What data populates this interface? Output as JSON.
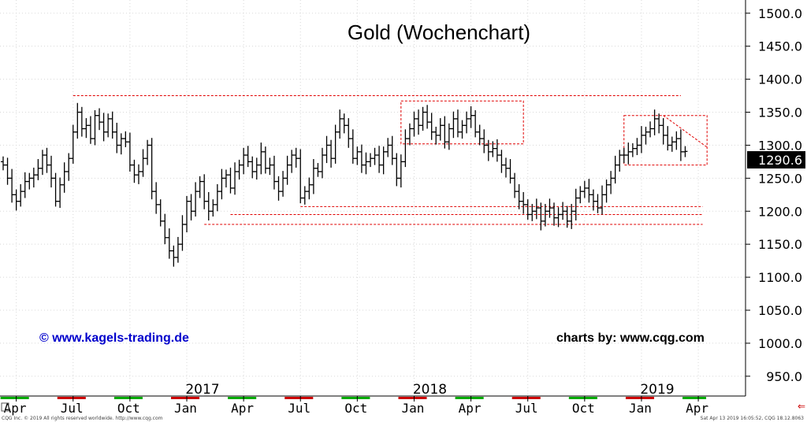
{
  "chart_data": {
    "type": "ohlc",
    "title": "Gold (Wochenchart)",
    "credits": {
      "left": "© www.kagels-trading.de",
      "right": "charts by: www.cqg.com"
    },
    "footer": {
      "left": "CQG Inc. © 2019 All rights reserved worldwide. http://www.cqg.com",
      "right": "Sat Apr 13 2019 16:05:52, CQG 18.12.8063"
    },
    "last_value": "1290.6",
    "colors": {
      "bars": "#000000",
      "lines": "#e00000",
      "last_box": "#000000",
      "credit_left": "#0000cc"
    },
    "yaxis": {
      "range": [
        920,
        1520
      ],
      "ticks": [
        950,
        1000,
        1050,
        1100,
        1150,
        1200,
        1250,
        1300,
        1350,
        1400,
        1450,
        1500
      ],
      "tick_labels": [
        "950.0",
        "1000.0",
        "1050.0",
        "1100.0",
        "1150.0",
        "1200.0",
        "1250.0",
        "1300.0",
        "1350.0",
        "1400.0",
        "1450.0",
        "1500.0"
      ]
    },
    "xaxis": {
      "months": [
        {
          "label": "Apr",
          "week": 3
        },
        {
          "label": "Jul",
          "week": 16
        },
        {
          "label": "Oct",
          "week": 29
        },
        {
          "label": "Jan",
          "week": 42
        },
        {
          "label": "Apr",
          "week": 55
        },
        {
          "label": "Jul",
          "week": 68
        },
        {
          "label": "Oct",
          "week": 81
        },
        {
          "label": "Jan",
          "week": 94
        },
        {
          "label": "Apr",
          "week": 107
        },
        {
          "label": "Jul",
          "week": 120
        },
        {
          "label": "Oct",
          "week": 133
        },
        {
          "label": "Jan",
          "week": 146
        },
        {
          "label": "Apr",
          "week": 159
        }
      ],
      "years": [
        {
          "label": "2017",
          "week": 42
        },
        {
          "label": "2018",
          "week": 94
        },
        {
          "label": "2019",
          "week": 146
        }
      ],
      "weeks_total": 168
    },
    "closes": [
      1270,
      1250,
      1225,
      1215,
      1230,
      1245,
      1250,
      1255,
      1265,
      1285,
      1270,
      1250,
      1215,
      1240,
      1260,
      1280,
      1320,
      1350,
      1325,
      1330,
      1310,
      1345,
      1335,
      1320,
      1340,
      1320,
      1300,
      1310,
      1305,
      1270,
      1255,
      1260,
      1280,
      1300,
      1230,
      1210,
      1185,
      1160,
      1140,
      1130,
      1150,
      1180,
      1215,
      1200,
      1230,
      1245,
      1215,
      1200,
      1210,
      1230,
      1250,
      1255,
      1235,
      1260,
      1270,
      1285,
      1275,
      1260,
      1270,
      1290,
      1265,
      1270,
      1245,
      1230,
      1250,
      1270,
      1285,
      1280,
      1220,
      1230,
      1240,
      1265,
      1260,
      1285,
      1300,
      1280,
      1320,
      1340,
      1330,
      1310,
      1280,
      1290,
      1270,
      1275,
      1280,
      1285,
      1270,
      1290,
      1300,
      1280,
      1250,
      1275,
      1310,
      1325,
      1340,
      1330,
      1350,
      1335,
      1320,
      1315,
      1330,
      1305,
      1325,
      1340,
      1320,
      1330,
      1340,
      1345,
      1320,
      1310,
      1300,
      1290,
      1295,
      1285,
      1270,
      1265,
      1250,
      1230,
      1215,
      1210,
      1195,
      1200,
      1205,
      1185,
      1200,
      1205,
      1190,
      1195,
      1200,
      1185,
      1200,
      1220,
      1230,
      1235,
      1225,
      1215,
      1205,
      1225,
      1240,
      1250,
      1270,
      1285,
      1285,
      1290,
      1295,
      1300,
      1315,
      1320,
      1325,
      1340,
      1330,
      1315,
      1300,
      1305,
      1310,
      1290,
      1290.6
    ],
    "annotations": {
      "resistance_line": {
        "from_week": 16,
        "to_week": 155,
        "value": 1375
      },
      "support_lines": [
        {
          "from_week": 68,
          "to_week": 160,
          "value": 1207
        },
        {
          "from_week": 52,
          "to_week": 160,
          "value": 1195
        },
        {
          "from_week": 46,
          "to_week": 160,
          "value": 1180
        }
      ],
      "boxes": [
        {
          "from_week": 91,
          "to_week": 119,
          "low": 1302,
          "high": 1367
        },
        {
          "from_week": 142,
          "to_week": 161,
          "low": 1270,
          "high": 1345
        }
      ],
      "trend_line": {
        "from_week": 151,
        "to_week": 161,
        "start": 1345,
        "end": 1297
      }
    }
  }
}
